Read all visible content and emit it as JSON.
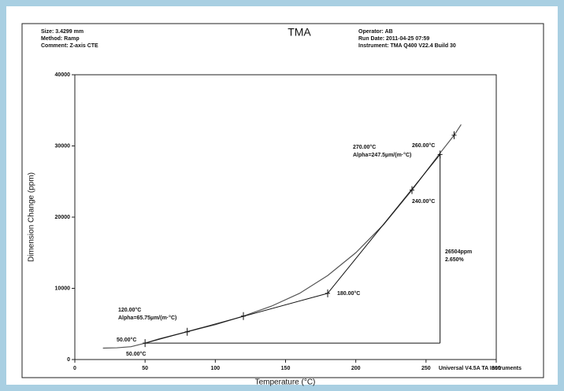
{
  "chart_data": {
    "type": "line",
    "title": "TMA",
    "header_left": [
      "Size: 3.4299 mm",
      "Method: Ramp",
      "Comment: Z-axis CTE"
    ],
    "header_right": [
      "Operator: AB",
      "Run Date: 2011-04-25 07:59",
      "Instrument: TMA Q400 V22.4 Build 30"
    ],
    "footer": "Universal V4.5A TA Instruments",
    "x_label": "Temperature (°C)",
    "y_label": "Dimension Change (ppm)",
    "xlim": [
      0,
      300
    ],
    "ylim": [
      0,
      40000
    ],
    "xticks": [
      0,
      50,
      100,
      150,
      200,
      250,
      300
    ],
    "yticks": [
      0,
      10000,
      20000,
      30000,
      40000
    ],
    "x": [
      20,
      30,
      40,
      50,
      60,
      80,
      100,
      120,
      140,
      160,
      180,
      200,
      220,
      240,
      260,
      270,
      275
    ],
    "series": [
      {
        "color": "#555555",
        "values": [
          1600,
          1650,
          1800,
          2300,
          2900,
          3900,
          4900,
          6100,
          7500,
          9300,
          11800,
          15000,
          19000,
          23800,
          29000,
          31500,
          33000
        ]
      }
    ],
    "lines": [
      {
        "x": [
          50,
          180
        ],
        "y": [
          2300,
          9300
        ]
      },
      {
        "x": [
          180,
          260
        ],
        "y": [
          9300,
          28800
        ]
      },
      {
        "x": [
          50,
          260
        ],
        "y": [
          2300,
          2300
        ]
      },
      {
        "x": [
          260,
          260
        ],
        "y": [
          2300,
          28800
        ]
      }
    ],
    "markers": [
      {
        "x": 50,
        "y": 2300
      },
      {
        "x": 80,
        "y": 3900
      },
      {
        "x": 120,
        "y": 6100
      },
      {
        "x": 180,
        "y": 9300
      },
      {
        "x": 240,
        "y": 23800
      },
      {
        "x": 260,
        "y": 28800
      },
      {
        "x": 270,
        "y": 31500
      }
    ],
    "annotations": [
      [
        "50.00°C"
      ],
      [
        "50.00°C"
      ],
      [
        "120.00°C",
        "Alpha=65.75µm/(m·°C)"
      ],
      [
        "180.00°C"
      ],
      [
        "240.00°C"
      ],
      [
        "270.00°C",
        "Alpha=247.5µm/(m·°C)"
      ],
      [
        "260.00°C"
      ],
      [
        "26504ppm",
        "2.650%"
      ]
    ]
  }
}
